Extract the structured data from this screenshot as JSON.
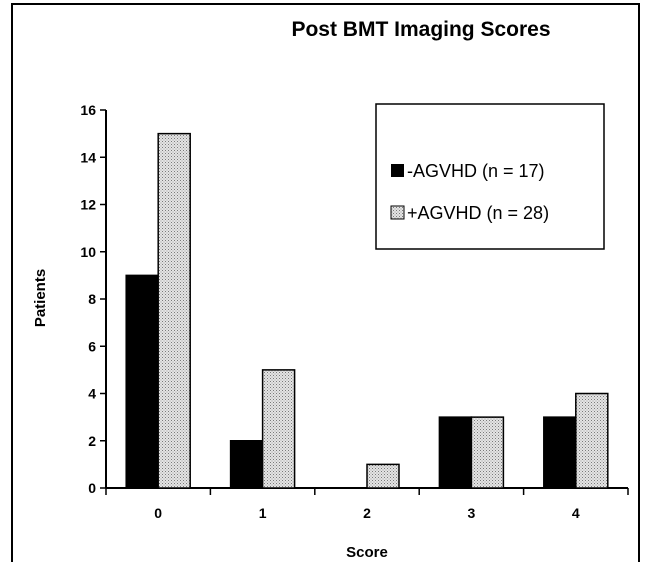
{
  "chart_data": {
    "type": "bar",
    "title": "Post BMT Imaging Scores",
    "xlabel": "Score",
    "ylabel": "Patients",
    "categories": [
      "0",
      "1",
      "2",
      "3",
      "4"
    ],
    "series": [
      {
        "name": "-AGVHD (n = 17)",
        "values": [
          9,
          2,
          0,
          3,
          3
        ],
        "color": "#000000"
      },
      {
        "name": "+AGVHD (n = 28)",
        "values": [
          15,
          5,
          1,
          3,
          4
        ],
        "color": "#d4d4d4"
      }
    ],
    "ylim": [
      0,
      16
    ],
    "yticks": [
      "0",
      "2",
      "4",
      "6",
      "8",
      "10",
      "12",
      "14",
      "16"
    ],
    "grid": false,
    "legend_position": "top-right"
  }
}
